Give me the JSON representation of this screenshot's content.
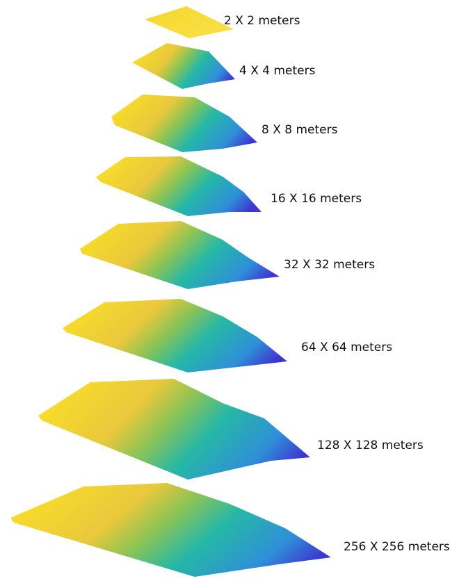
{
  "levels": [
    {
      "label": "2 X 2 meters"
    },
    {
      "label": "4 X 4 meters"
    },
    {
      "label": "8 X 8 meters"
    },
    {
      "label": "16 X 16 meters"
    },
    {
      "label": "32 X 32 meters"
    },
    {
      "label": "64 X 64 meters"
    },
    {
      "label": "128 X 128 meters"
    },
    {
      "label": "256 X 256 meters"
    }
  ]
}
